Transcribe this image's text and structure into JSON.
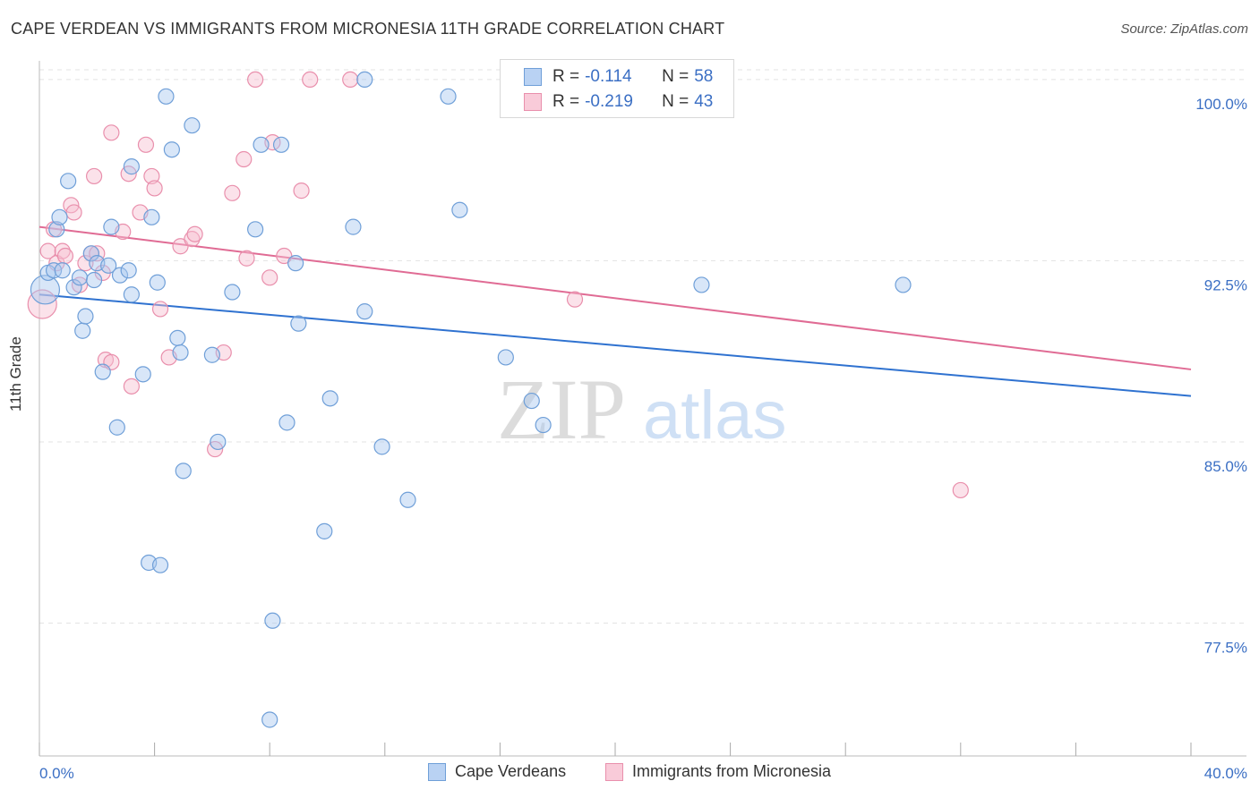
{
  "title": "CAPE VERDEAN VS IMMIGRANTS FROM MICRONESIA 11TH GRADE CORRELATION CHART",
  "source": "Source: ZipAtlas.com",
  "watermark": {
    "zip": "ZIP",
    "atlas": "atlas"
  },
  "legend_stats": [
    {
      "r_label": "R =",
      "r_value": "-0.114",
      "n_label": "N =",
      "n_value": "58"
    },
    {
      "r_label": "R =",
      "r_value": "-0.219",
      "n_label": "N =",
      "n_value": "43"
    }
  ],
  "colors": {
    "blue_fill": "#a9c7ef",
    "blue_stroke": "#6f9fd8",
    "blue_line": "#2f72d0",
    "pink_fill": "#f6bfd0",
    "pink_stroke": "#e98fac",
    "pink_line": "#e06b94",
    "tick_label": "#3b6fc4",
    "grid": "#e3e3e3"
  },
  "chart_data": {
    "type": "scatter",
    "title": "CAPE VERDEAN VS IMMIGRANTS FROM MICRONESIA 11TH GRADE CORRELATION CHART",
    "xlabel": "",
    "ylabel": "11th Grade",
    "xlim": [
      0,
      40
    ],
    "ylim": [
      72,
      100.7
    ],
    "x_tick_labels": [
      "0.0%",
      "40.0%"
    ],
    "y_ticks": [
      77.5,
      85.0,
      92.5,
      100.0
    ],
    "y_tick_labels": [
      "77.5%",
      "85.0%",
      "92.5%",
      "100.0%"
    ],
    "grid": true,
    "legend_position": "bottom",
    "series": [
      {
        "name": "Cape Verdeans",
        "trend": {
          "x": [
            0,
            40
          ],
          "y": [
            91.1,
            86.9
          ]
        },
        "points": [
          [
            0.2,
            91.3
          ],
          [
            0.3,
            92.0
          ],
          [
            0.5,
            92.1
          ],
          [
            0.6,
            93.8
          ],
          [
            0.7,
            94.3
          ],
          [
            0.8,
            92.1
          ],
          [
            1.0,
            95.8
          ],
          [
            1.2,
            91.4
          ],
          [
            1.4,
            91.8
          ],
          [
            1.5,
            89.6
          ],
          [
            1.6,
            90.2
          ],
          [
            1.8,
            92.8
          ],
          [
            1.9,
            91.7
          ],
          [
            2.0,
            92.4
          ],
          [
            2.2,
            87.9
          ],
          [
            2.4,
            92.3
          ],
          [
            2.5,
            93.9
          ],
          [
            2.7,
            85.6
          ],
          [
            2.8,
            91.9
          ],
          [
            3.1,
            92.1
          ],
          [
            3.2,
            96.4
          ],
          [
            3.2,
            91.1
          ],
          [
            3.6,
            87.8
          ],
          [
            3.8,
            80.0
          ],
          [
            3.9,
            94.3
          ],
          [
            4.1,
            91.6
          ],
          [
            4.2,
            79.9
          ],
          [
            4.4,
            99.3
          ],
          [
            4.6,
            97.1
          ],
          [
            4.8,
            89.3
          ],
          [
            4.9,
            88.7
          ],
          [
            5.0,
            83.8
          ],
          [
            5.3,
            98.1
          ],
          [
            6.0,
            88.6
          ],
          [
            6.2,
            85.0
          ],
          [
            6.7,
            91.2
          ],
          [
            7.5,
            93.8
          ],
          [
            7.7,
            97.3
          ],
          [
            8.1,
            77.6
          ],
          [
            8.4,
            97.3
          ],
          [
            8.6,
            85.8
          ],
          [
            8.9,
            92.4
          ],
          [
            9.0,
            89.9
          ],
          [
            9.9,
            81.3
          ],
          [
            10.1,
            86.8
          ],
          [
            10.9,
            93.9
          ],
          [
            11.3,
            90.4
          ],
          [
            11.3,
            100.0
          ],
          [
            11.9,
            84.8
          ],
          [
            12.8,
            82.6
          ],
          [
            14.2,
            99.3
          ],
          [
            14.6,
            94.6
          ],
          [
            16.2,
            88.5
          ],
          [
            17.1,
            86.7
          ],
          [
            17.5,
            85.7
          ],
          [
            23.0,
            91.5
          ],
          [
            30.0,
            91.5
          ],
          [
            8.0,
            73.5
          ]
        ]
      },
      {
        "name": "Immigrants from Micronesia",
        "trend": {
          "x": [
            0,
            40
          ],
          "y": [
            93.9,
            88.0
          ]
        },
        "points": [
          [
            0.1,
            90.7
          ],
          [
            0.3,
            92.9
          ],
          [
            0.5,
            93.8
          ],
          [
            0.6,
            92.4
          ],
          [
            0.8,
            92.9
          ],
          [
            0.9,
            92.7
          ],
          [
            1.1,
            94.8
          ],
          [
            1.2,
            94.5
          ],
          [
            1.4,
            91.5
          ],
          [
            1.6,
            92.4
          ],
          [
            1.8,
            92.8
          ],
          [
            1.9,
            96.0
          ],
          [
            2.0,
            92.8
          ],
          [
            2.2,
            92.0
          ],
          [
            2.3,
            88.4
          ],
          [
            2.5,
            97.8
          ],
          [
            2.5,
            88.3
          ],
          [
            2.9,
            93.7
          ],
          [
            3.1,
            96.1
          ],
          [
            3.2,
            87.3
          ],
          [
            3.5,
            94.5
          ],
          [
            3.7,
            97.3
          ],
          [
            3.9,
            96.0
          ],
          [
            4.0,
            95.5
          ],
          [
            4.2,
            90.5
          ],
          [
            4.5,
            88.5
          ],
          [
            4.9,
            93.1
          ],
          [
            5.3,
            93.4
          ],
          [
            5.4,
            93.6
          ],
          [
            6.1,
            84.7
          ],
          [
            6.4,
            88.7
          ],
          [
            6.7,
            95.3
          ],
          [
            7.1,
            96.7
          ],
          [
            7.2,
            92.6
          ],
          [
            7.5,
            100.0
          ],
          [
            8.0,
            91.8
          ],
          [
            8.1,
            97.4
          ],
          [
            8.5,
            92.7
          ],
          [
            9.1,
            95.4
          ],
          [
            9.4,
            100.0
          ],
          [
            10.8,
            100.0
          ],
          [
            18.6,
            90.9
          ],
          [
            32.0,
            83.0
          ]
        ]
      }
    ]
  },
  "bottom_legend": {
    "items": [
      "Cape Verdeans",
      "Immigrants from Micronesia"
    ]
  }
}
